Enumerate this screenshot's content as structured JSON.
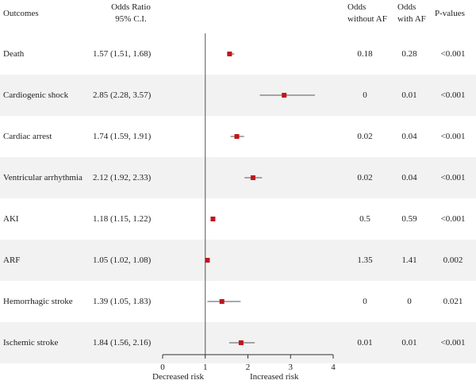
{
  "headers": {
    "outcomes": "Outcomes",
    "or_line1": "Odds Ratio",
    "or_line2": "95% C.I.",
    "odds_no_af_line1": "Odds",
    "odds_no_af_line2": "without AF",
    "odds_af_line1": "Odds",
    "odds_af_line2": "with AF",
    "pvalues": "P-values"
  },
  "axis_notes": {
    "left": "Decreased risk",
    "right": "Increased risk"
  },
  "chart_data": {
    "type": "forest",
    "xlim": [
      0,
      4
    ],
    "xticks": [
      0,
      1,
      2,
      3,
      4
    ],
    "reference_line": 1,
    "marker_color": "#c0161b",
    "rows": [
      {
        "outcome": "Death",
        "or_text": "1.57 (1.51, 1.68)",
        "or": 1.57,
        "lo": 1.51,
        "hi": 1.68,
        "odds_without_af": "0.18",
        "odds_with_af": "0.28",
        "p": "<0.001"
      },
      {
        "outcome": "Cardiogenic shock",
        "or_text": "2.85 (2.28, 3.57)",
        "or": 2.85,
        "lo": 2.28,
        "hi": 3.57,
        "odds_without_af": "0",
        "odds_with_af": "0.01",
        "p": "<0.001"
      },
      {
        "outcome": "Cardiac arrest",
        "or_text": "1.74 (1.59, 1.91)",
        "or": 1.74,
        "lo": 1.59,
        "hi": 1.91,
        "odds_without_af": "0.02",
        "odds_with_af": "0.04",
        "p": "<0.001"
      },
      {
        "outcome": "Ventricular arrhythmia",
        "or_text": "2.12 (1.92, 2.33)",
        "or": 2.12,
        "lo": 1.92,
        "hi": 2.33,
        "odds_without_af": "0.02",
        "odds_with_af": "0.04",
        "p": "<0.001"
      },
      {
        "outcome": "AKI",
        "or_text": "1.18 (1.15, 1.22)",
        "or": 1.18,
        "lo": 1.15,
        "hi": 1.22,
        "odds_without_af": "0.5",
        "odds_with_af": "0.59",
        "p": "<0.001"
      },
      {
        "outcome": "ARF",
        "or_text": "1.05 (1.02, 1.08)",
        "or": 1.05,
        "lo": 1.02,
        "hi": 1.08,
        "odds_without_af": "1.35",
        "odds_with_af": "1.41",
        "p": "0.002"
      },
      {
        "outcome": "Hemorrhagic stroke",
        "or_text": "1.39 (1.05, 1.83)",
        "or": 1.39,
        "lo": 1.05,
        "hi": 1.83,
        "odds_without_af": "0",
        "odds_with_af": "0",
        "p": "0.021"
      },
      {
        "outcome": "Ischemic stroke",
        "or_text": "1.84 (1.56, 2.16)",
        "or": 1.84,
        "lo": 1.56,
        "hi": 2.16,
        "odds_without_af": "0.01",
        "odds_with_af": "0.01",
        "p": "<0.001"
      }
    ]
  }
}
